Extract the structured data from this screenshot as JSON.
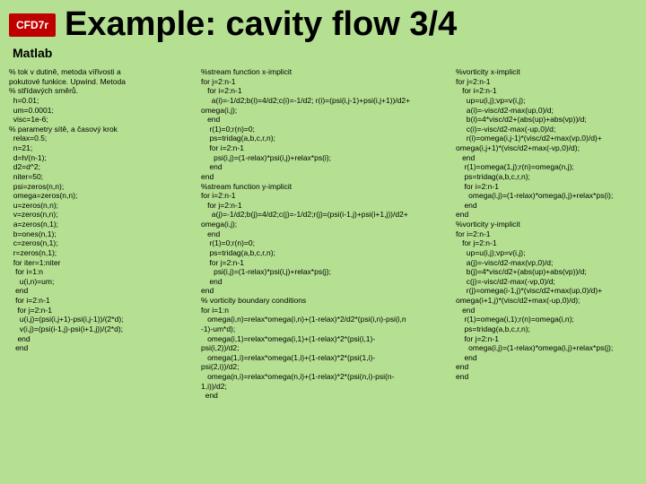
{
  "background_color": "#b5e092",
  "badge": {
    "text": "CFD7r",
    "bg": "#c00000",
    "fg": "#ffffff"
  },
  "title": {
    "text": "Example: cavity flow 3/4",
    "color": "#000000"
  },
  "subtitle": {
    "text": "Matlab",
    "color": "#000000"
  },
  "code_color": "#000000",
  "columns": {
    "col1": "% tok v dutině, metoda vířivosti a\npokutové funkice. Upwind. Metoda\n% střídavých směrů.\n  h=0.01;\n  um=0.0001;\n  visc=1e-6;\n% parametry sítě, a časový krok\n  relax=0.5;\n  n=21;\n  d=h/(n-1);\n  d2=d^2;\n  niter=50;\n  psi=zeros(n,n);\n  omega=zeros(n,n);\n  u=zeros(n,n);\n  v=zeros(n,n);\n  a=zeros(n,1);\n  b=ones(n,1);\n  c=zeros(n,1);\n  r=zeros(n,1);\n  for iter=1:niter\n   for i=1:n\n     u(i,n)=um;\n   end\n   for i=2:n-1\n    for j=2:n-1\n     u(i,j)=(psi(i,j+1)-psi(i,j-1))/(2*d);\n     v(i,j)=(psi(i-1,j)-psi(i+1,j))/(2*d);\n    end\n   end",
    "col2": "%stream function x-implicit\nfor j=2:n-1\n   for i=2:n-1\n     a(i)=-1/d2;b(i)=4/d2;c(i)=-1/d2; r(i)=(psi(i,j-1)+psi(i,j+1))/d2+\nomega(i,j);\n   end\n    r(1)=0;r(n)=0;\n    ps=tridag(a,b,c,r,n);\n    for i=2:n-1\n      psi(i,j)=(1-relax)*psi(i,j)+relax*ps(i);\n    end\nend\n%stream function y-implicit\nfor i=2:n-1\n   for j=2:n-1\n     a(j)=-1/d2;b(j)=4/d2;c(j)=-1/d2;r(j)=(psi(i-1,j)+psi(i+1,j))/d2+\nomega(i,j);\n   end\n    r(1)=0;r(n)=0;\n    ps=tridag(a,b,c,r,n);\n    for j=2:n-1\n      psi(i,j)=(1-relax)*psi(i,j)+relax*ps(j);\n    end\nend\n% vorticity boundary conditions\nfor i=1:n\n   omega(i,n)=relax*omega(i,n)+(1-relax)*2/d2*(psi(i,n)-psi(i,n\n-1)-um*d);\n   omega(i,1)=relax*omega(i,1)+(1-relax)*2*(psi(i,1)-\npsi(i,2))/d2;\n   omega(1,i)=relax*omega(1,i)+(1-relax)*2*(psi(1,i)-\npsi(2,i))/d2;\n   omega(n,i)=relax*omega(n,i)+(1-relax)*2*(psi(n,i)-psi(n-\n1,i))/d2;\n  end",
    "col3": "%vorticity x-implicit\nfor j=2:n-1\n   for i=2:n-1\n     up=u(i,j);vp=v(i,j);\n     a(i)=-visc/d2-max(up,0)/d;\n     b(i)=4*visc/d2+(abs(up)+abs(vp))/d;\n     c(i)=-visc/d2-max(-up,0)/d;\n     r(i)=omega(i,j-1)*(visc/d2+max(vp,0)/d)+\nomega(i,j+1)*(visc/d2+max(-vp,0)/d);\n   end\n    r(1)=omega(1,j);r(n)=omega(n,j);\n    ps=tridag(a,b,c,r,n);\n    for i=2:n-1\n      omega(i,j)=(1-relax)*omega(i,j)+relax*ps(i);\n    end\nend\n%vorticity y-implicit\nfor i=2:n-1\n   for j=2:n-1\n     up=u(i,j);vp=v(i,j);\n     a(j)=-visc/d2-max(vp,0)/d;\n     b(j)=4*visc/d2+(abs(up)+abs(vp))/d;\n     c(j)=-visc/d2-max(-vp,0)/d;\n     r(j)=omega(i-1,j)*(visc/d2+max(up,0)/d)+\nomega(i+1,j)*(visc/d2+max(-up,0)/d);\n   end\n    r(1)=omega(i,1);r(n)=omega(i,n);\n    ps=tridag(a,b,c,r,n);\n    for j=2:n-1\n      omega(i,j)=(1-relax)*omega(i,j)+relax*ps(j);\n    end\nend\nend"
  }
}
